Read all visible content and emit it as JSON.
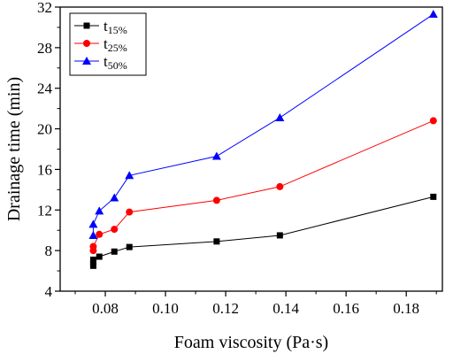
{
  "chart_data": {
    "type": "line",
    "xlabel": "Foam viscosity (Pa·s)",
    "ylabel": "Drainage time (min)",
    "xlim": [
      0.065,
      0.192
    ],
    "ylim": [
      4,
      32
    ],
    "x_ticks": [
      0.08,
      0.1,
      0.12,
      0.14,
      0.16,
      0.18
    ],
    "x_tick_labels": [
      "0.08",
      "0.10",
      "0.12",
      "0.14",
      "0.16",
      "0.18"
    ],
    "y_ticks": [
      4,
      8,
      12,
      16,
      20,
      24,
      28,
      32
    ],
    "y_tick_labels": [
      "4",
      "8",
      "12",
      "16",
      "20",
      "24",
      "28",
      "32"
    ],
    "legend_position": "top-left",
    "grid": false,
    "series": [
      {
        "name": "t",
        "subscript": "15%",
        "color": "#000000",
        "marker": "square",
        "x": [
          0.076,
          0.076,
          0.076,
          0.078,
          0.083,
          0.088,
          0.117,
          0.138,
          0.189
        ],
        "y": [
          6.5,
          6.8,
          7.1,
          7.4,
          7.9,
          8.35,
          8.9,
          9.5,
          13.3
        ]
      },
      {
        "name": "t",
        "subscript": "25%",
        "color": "#ff0000",
        "marker": "circle",
        "x": [
          0.076,
          0.076,
          0.078,
          0.083,
          0.088,
          0.117,
          0.138,
          0.189
        ],
        "y": [
          8.0,
          8.4,
          9.6,
          10.1,
          11.8,
          12.95,
          14.3,
          20.8
        ]
      },
      {
        "name": "t",
        "subscript": "50%",
        "color": "#0000ff",
        "marker": "triangle",
        "x": [
          0.076,
          0.076,
          0.078,
          0.083,
          0.088,
          0.117,
          0.138,
          0.189
        ],
        "y": [
          9.5,
          10.6,
          11.9,
          13.2,
          15.4,
          17.3,
          21.1,
          31.3
        ]
      }
    ]
  }
}
